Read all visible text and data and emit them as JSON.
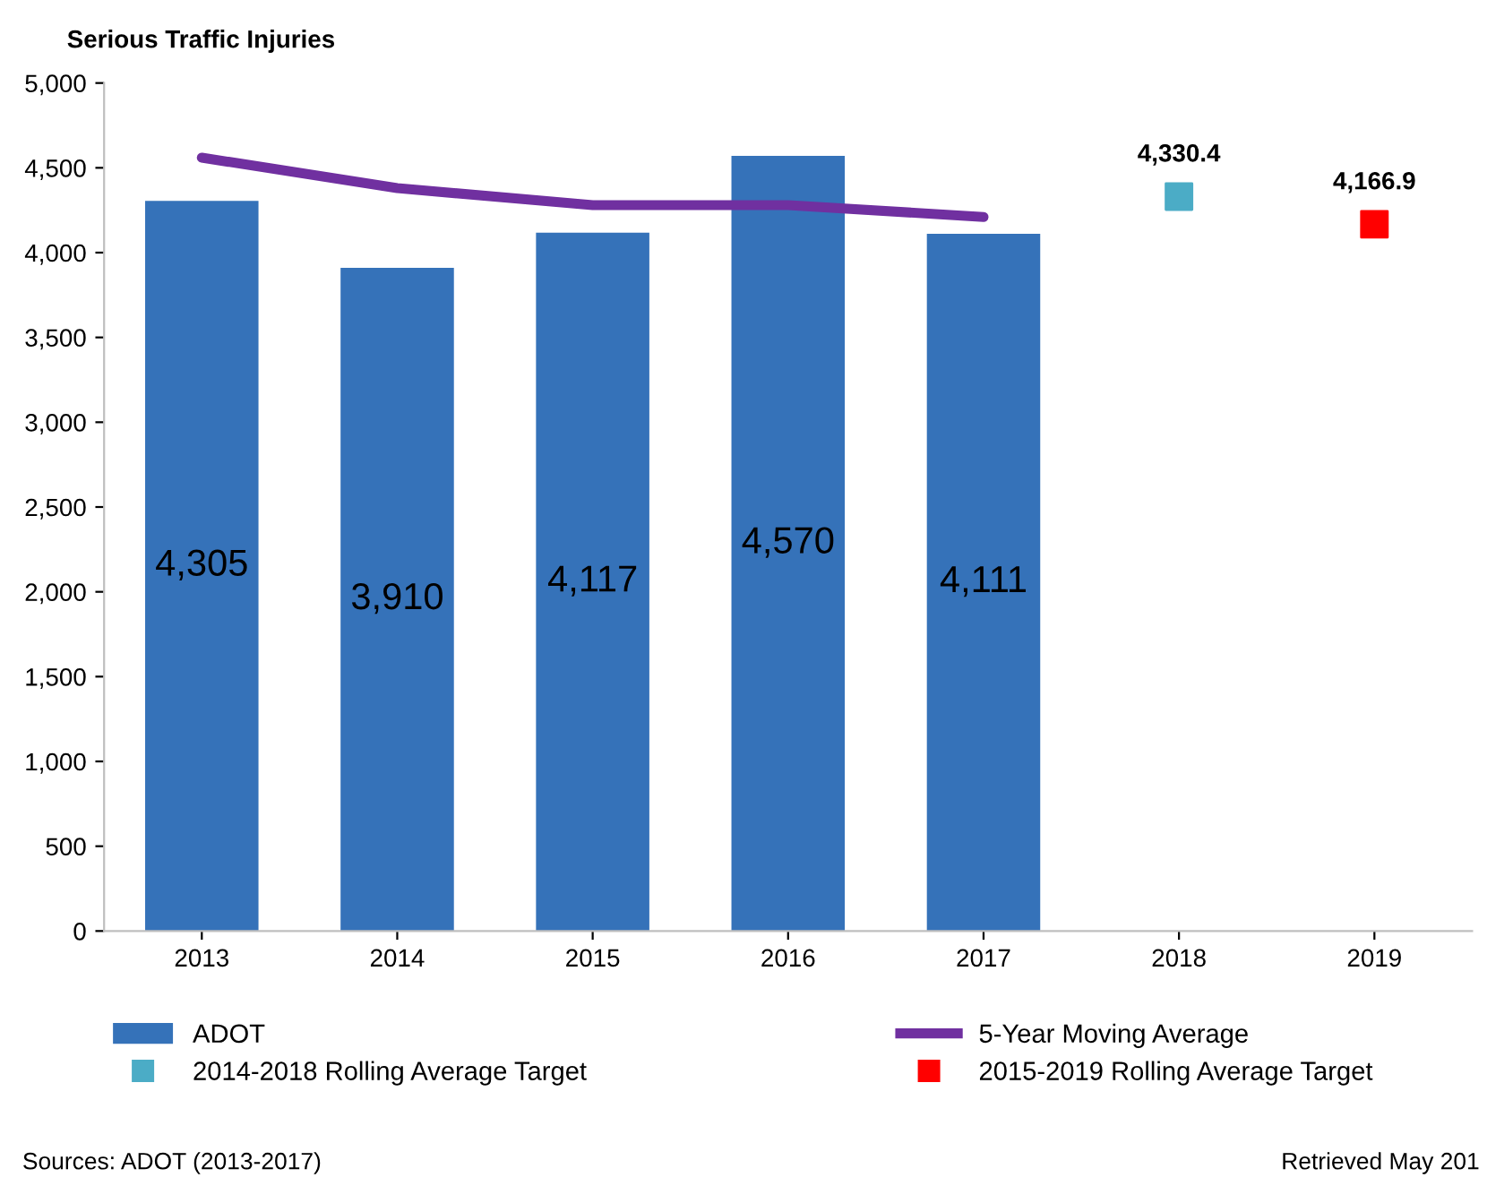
{
  "chart_data": {
    "type": "bar",
    "title": "Serious Traffic Injuries",
    "categories": [
      "2013",
      "2014",
      "2015",
      "2016",
      "2017",
      "2018",
      "2019"
    ],
    "series": [
      {
        "name": "ADOT",
        "color": "#3572b9",
        "values": [
          4305,
          3910,
          4117,
          4570,
          4111,
          null,
          null
        ],
        "value_labels": [
          "4,305",
          "3,910",
          "4,117",
          "4,570",
          "4,111",
          null,
          null
        ]
      },
      {
        "name": "5-Year Moving Average",
        "type": "line",
        "color": "#7030a0",
        "values": [
          4560,
          4380,
          4280,
          4280,
          4210,
          null,
          null
        ],
        "marker": "none"
      },
      {
        "name": "2014-2018 Rolling Average Target",
        "type": "scatter",
        "color": "#4bacc6",
        "values": [
          null,
          null,
          null,
          null,
          null,
          4330.4,
          null
        ],
        "value_labels": [
          null,
          null,
          null,
          null,
          null,
          "4,330.4",
          null
        ],
        "marker": "square"
      },
      {
        "name": "2015-2019 Rolling Average Target",
        "type": "scatter",
        "color": "#ff0000",
        "values": [
          null,
          null,
          null,
          null,
          null,
          null,
          4166.9
        ],
        "value_labels": [
          null,
          null,
          null,
          null,
          null,
          null,
          "4,166.9"
        ],
        "marker": "square"
      }
    ],
    "ylim": [
      0,
      5000
    ],
    "yticks": [
      {
        "value": 0,
        "label": "0"
      },
      {
        "value": 500,
        "label": "500"
      },
      {
        "value": 1000,
        "label": "1,000"
      },
      {
        "value": 1500,
        "label": "1,500"
      },
      {
        "value": 2000,
        "label": "2,000"
      },
      {
        "value": 2500,
        "label": "2,500"
      },
      {
        "value": 3000,
        "label": "3,000"
      },
      {
        "value": 3500,
        "label": "3,500"
      },
      {
        "value": 4000,
        "label": "4,000"
      },
      {
        "value": 4500,
        "label": "4,500"
      },
      {
        "value": 5000,
        "label": "5,000"
      }
    ],
    "grid": false,
    "legend": "bottom",
    "annotations": [
      "Sources: ADOT (2013-2017)",
      "Retrieved May 201"
    ]
  }
}
